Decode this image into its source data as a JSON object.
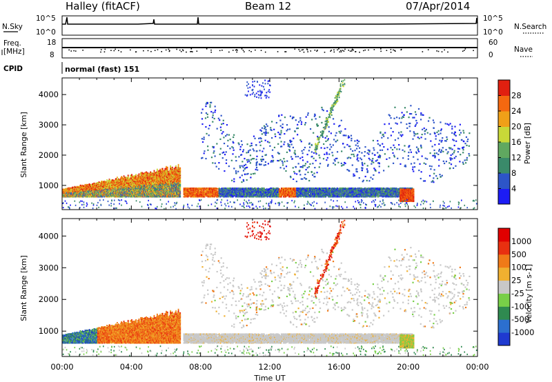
{
  "header": {
    "site": "Halley (fitACF)",
    "beam": "Beam 12",
    "date": "07/Apr/2014"
  },
  "aux": {
    "nsky_label": "N.Sky",
    "nsearch_label": "N.Search",
    "noise_ticks_left": [
      "10^5",
      "10^0"
    ],
    "noise_ticks_right": [
      "10^5",
      "10^0"
    ],
    "freq_label_1": "Freq.",
    "freq_label_2": "[MHz]",
    "freq_ticks": [
      "18",
      "8"
    ],
    "nave_label": "Nave",
    "nave_ticks": [
      "60",
      "0"
    ],
    "cpid_label": "CPID",
    "cpid_value": "normal (fast) 151"
  },
  "chart_data": [
    {
      "type": "heatmap",
      "name": "Power",
      "ylabel": "Slant Range [km]",
      "ylim": [
        200,
        4550
      ],
      "yticks": [
        1000,
        2000,
        3000,
        4000
      ],
      "xlim_hours": [
        0,
        24
      ],
      "colorbar": {
        "label": "Power [dB]",
        "range": [
          0,
          32
        ],
        "ticks": [
          4,
          8,
          12,
          16,
          20,
          24,
          28
        ],
        "colors": [
          "#1c1cf5",
          "#2d55c8",
          "#3a8a6a",
          "#60a860",
          "#c8d838",
          "#f0a018",
          "#f46810",
          "#e02010"
        ]
      },
      "features": [
        {
          "t0": 0.0,
          "t1": 6.8,
          "r0": 650,
          "r1": 1750,
          "value": "mixed 8-28 dB"
        },
        {
          "t0": 7.0,
          "t1": 20.2,
          "r0": 650,
          "r1": 950,
          "value": "8-24 dB"
        },
        {
          "t0": 19.5,
          "t1": 20.3,
          "r0": 500,
          "r1": 900,
          "value": "24-28 dB"
        },
        {
          "t0": 8.0,
          "t1": 23.5,
          "r0": 1100,
          "r1": 3700,
          "value": "4-8 dB scattered"
        },
        {
          "t0": 14.5,
          "t1": 16.2,
          "r0": 2200,
          "r1": 4500,
          "value": "8-16 dB streak"
        }
      ]
    },
    {
      "type": "heatmap",
      "name": "Velocity",
      "ylabel": "Slant Range [km]",
      "xlabel": "Time UT",
      "ylim": [
        200,
        4550
      ],
      "yticks": [
        1000,
        2000,
        3000,
        4000
      ],
      "xticks": [
        "00:00",
        "04:00",
        "08:00",
        "12:00",
        "16:00",
        "20:00",
        "00:00"
      ],
      "xlim_hours": [
        0,
        24
      ],
      "colorbar": {
        "label": "Velocity [m s-1]",
        "ticks": [
          "1000",
          "500",
          "100",
          "25",
          "-25",
          "-100",
          "-500",
          "-1000"
        ],
        "colors": [
          "#1f3ad0",
          "#2c6fcf",
          "#2f8a50",
          "#78cf48",
          "#c8c8c8",
          "#f0b030",
          "#f07a18",
          "#e83010",
          "#e00000"
        ]
      },
      "features": [
        {
          "t0": 0.0,
          "t1": 2.0,
          "r0": 650,
          "r1": 1350,
          "value": "100 to 500 m/s"
        },
        {
          "t0": 2.0,
          "t1": 6.8,
          "r0": 750,
          "r1": 1750,
          "value": "-100 to -500 m/s"
        },
        {
          "t0": 6.9,
          "t1": 20.2,
          "r0": 650,
          "r1": 950,
          "value": "-25 to 25 m/s"
        },
        {
          "t0": 8.0,
          "t1": 23.0,
          "r0": 1100,
          "r1": 3300,
          "value": "mostly -25 to 25 m/s, some -100"
        },
        {
          "t0": 14.5,
          "t1": 16.2,
          "r0": 2200,
          "r1": 4500,
          "value": "-500 to -1000 m/s"
        }
      ]
    }
  ],
  "colors": {
    "axis": "#000000",
    "ground_scatter": "#c8c8c8"
  }
}
